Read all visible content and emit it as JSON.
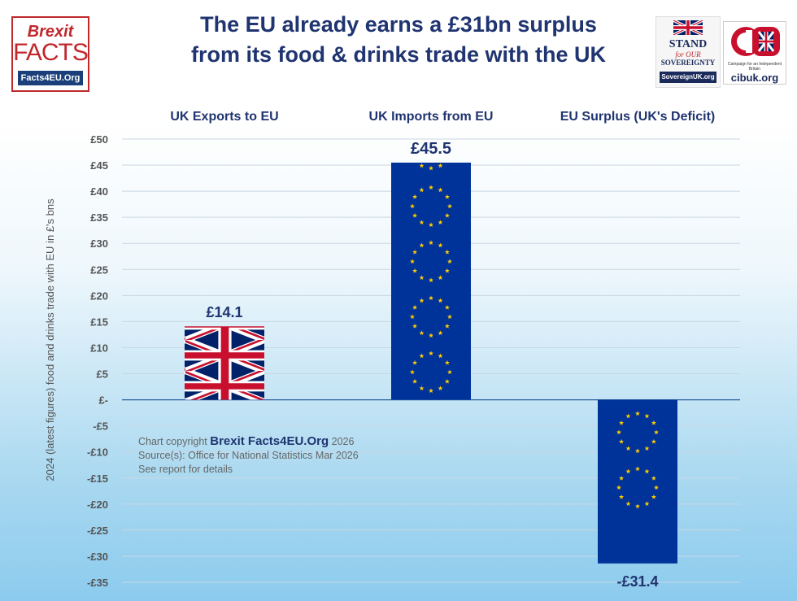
{
  "logos": {
    "brexit_facts": {
      "line1": "Brexit",
      "line2": "FACTS",
      "line3": "Facts4EU.Org"
    },
    "sovereignty": {
      "line1": "STAND",
      "line2": "for OUR",
      "line3": "SOVEREIGNTY",
      "line4": "SovereignUK.org"
    },
    "cib": {
      "mark": "CIB",
      "subtitle": "Campaign for an Independent Britain",
      "url": "cibuk.org"
    }
  },
  "title_lines": [
    "The EU already earns a £31bn surplus",
    "from its food & drinks trade with the UK"
  ],
  "credits": {
    "copyright_prefix": "Chart copyright",
    "brand": "Brexit Facts4EU.Org",
    "year": "2026",
    "source": "Source(s): Office for National Statistics Mar 2026",
    "note": "See report for details"
  },
  "chart_data": {
    "type": "bar",
    "title": "The EU already earns a £31bn surplus from its food & drinks trade with the UK",
    "ylabel": "2024 (latest figures) food and drinks trade with EU in £'s bns",
    "categories": [
      "UK Exports to EU",
      "UK Imports from EU",
      "EU Surplus (UK's Deficit)"
    ],
    "values": [
      14.1,
      45.5,
      -31.4
    ],
    "value_labels": [
      "£14.1",
      "£45.5",
      "-£31.4"
    ],
    "bar_fills": [
      "union-jack-flag",
      "eu-flag",
      "eu-flag"
    ],
    "ylim": [
      -35,
      50
    ],
    "yticks": [
      {
        "v": 50,
        "label": "£50"
      },
      {
        "v": 45,
        "label": "£45"
      },
      {
        "v": 40,
        "label": "£40"
      },
      {
        "v": 35,
        "label": "£35"
      },
      {
        "v": 30,
        "label": "£30"
      },
      {
        "v": 25,
        "label": "£25"
      },
      {
        "v": 20,
        "label": "£20"
      },
      {
        "v": 15,
        "label": "£15"
      },
      {
        "v": 10,
        "label": "£10"
      },
      {
        "v": 5,
        "label": "£5"
      },
      {
        "v": 0,
        "label": "£-"
      },
      {
        "v": -5,
        "label": "-£5"
      },
      {
        "v": -10,
        "label": "-£10"
      },
      {
        "v": -15,
        "label": "-£15"
      },
      {
        "v": -20,
        "label": "-£20"
      },
      {
        "v": -25,
        "label": "-£25"
      },
      {
        "v": -30,
        "label": "-£30"
      },
      {
        "v": -35,
        "label": "-£35"
      }
    ],
    "grid": true,
    "colors": {
      "eu_blue": "#003399",
      "eu_star": "#ffcc00",
      "uk_red": "#c8102e",
      "uk_blue": "#012169",
      "text": "#1f3470"
    }
  }
}
